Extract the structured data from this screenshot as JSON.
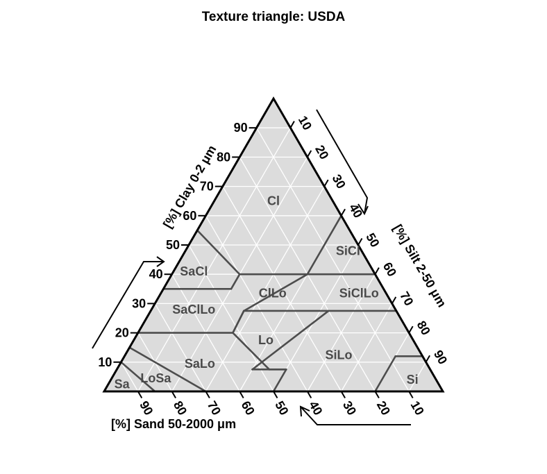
{
  "title": "Texture triangle: USDA",
  "diagram": {
    "type": "ternary",
    "colors": {
      "background": "#ffffff",
      "triangle_fill": "#dcdcdc",
      "grid": "#ffffff",
      "region_border": "#4d4d4d",
      "frame": "#000000",
      "region_text": "#4a4a4a"
    },
    "axes": {
      "clay": {
        "label": "[%] Clay 0-2 μm",
        "ticks": [
          "10",
          "20",
          "30",
          "40",
          "50",
          "60",
          "70",
          "80",
          "90"
        ]
      },
      "silt": {
        "label": "[%] Silt 2-50 μm",
        "ticks": [
          "10",
          "20",
          "30",
          "40",
          "50",
          "60",
          "70",
          "80",
          "90"
        ]
      },
      "sand": {
        "label": "[%] Sand 50-2000 μm",
        "ticks": [
          "90",
          "80",
          "70",
          "60",
          "50",
          "40",
          "30",
          "20",
          "10"
        ]
      }
    },
    "regions": [
      {
        "label": "Cl",
        "clay": 65,
        "silt": 17.5
      },
      {
        "label": "SiCl",
        "clay": 48,
        "silt": 48
      },
      {
        "label": "SaCl",
        "clay": 41,
        "silt": 6
      },
      {
        "label": "ClLo",
        "clay": 33.5,
        "silt": 33
      },
      {
        "label": "SiClLo",
        "clay": 33.5,
        "silt": 58.5
      },
      {
        "label": "SaClLo",
        "clay": 28,
        "silt": 12.5
      },
      {
        "label": "Lo",
        "clay": 17.5,
        "silt": 39
      },
      {
        "label": "SiLo",
        "clay": 12.5,
        "silt": 63
      },
      {
        "label": "SaLo",
        "clay": 9.5,
        "silt": 23.5
      },
      {
        "label": "LoSa",
        "clay": 4.5,
        "silt": 13
      },
      {
        "label": "Sa",
        "clay": 2.5,
        "silt": 4
      },
      {
        "label": "Si",
        "clay": 4,
        "silt": 89
      }
    ],
    "boundaries": [
      [
        [
          55,
          0
        ],
        [
          40,
          20
        ]
      ],
      [
        [
          40,
          20
        ],
        [
          40,
          40
        ]
      ],
      [
        [
          40,
          40
        ],
        [
          60,
          40
        ]
      ],
      [
        [
          40,
          40
        ],
        [
          27.5,
          27.5
        ]
      ],
      [
        [
          35,
          0
        ],
        [
          35,
          20
        ]
      ],
      [
        [
          35,
          20
        ],
        [
          40,
          20
        ]
      ],
      [
        [
          20,
          0
        ],
        [
          20,
          28
        ]
      ],
      [
        [
          20,
          28
        ],
        [
          27.5,
          27.5
        ]
      ],
      [
        [
          27.5,
          27.5
        ],
        [
          27.5,
          52.5
        ]
      ],
      [
        [
          27.5,
          52.5
        ],
        [
          27.5,
          72.5
        ]
      ],
      [
        [
          40,
          40
        ],
        [
          40,
          60
        ]
      ],
      [
        [
          27.5,
          52.5
        ],
        [
          7.5,
          40
        ]
      ],
      [
        [
          27.5,
          27.5
        ],
        [
          20,
          28
        ]
      ],
      [
        [
          20,
          28
        ],
        [
          7.5,
          45
        ]
      ],
      [
        [
          7.5,
          45
        ],
        [
          7.5,
          50
        ]
      ],
      [
        [
          7.5,
          40
        ],
        [
          7.5,
          50
        ]
      ],
      [
        [
          7.5,
          50
        ],
        [
          0,
          50
        ]
      ],
      [
        [
          12,
          80
        ],
        [
          0,
          80
        ]
      ],
      [
        [
          12,
          80
        ],
        [
          12,
          88
        ]
      ],
      [
        [
          15,
          0
        ],
        [
          0,
          30
        ]
      ],
      [
        [
          10,
          0
        ],
        [
          0,
          15
        ]
      ]
    ]
  }
}
